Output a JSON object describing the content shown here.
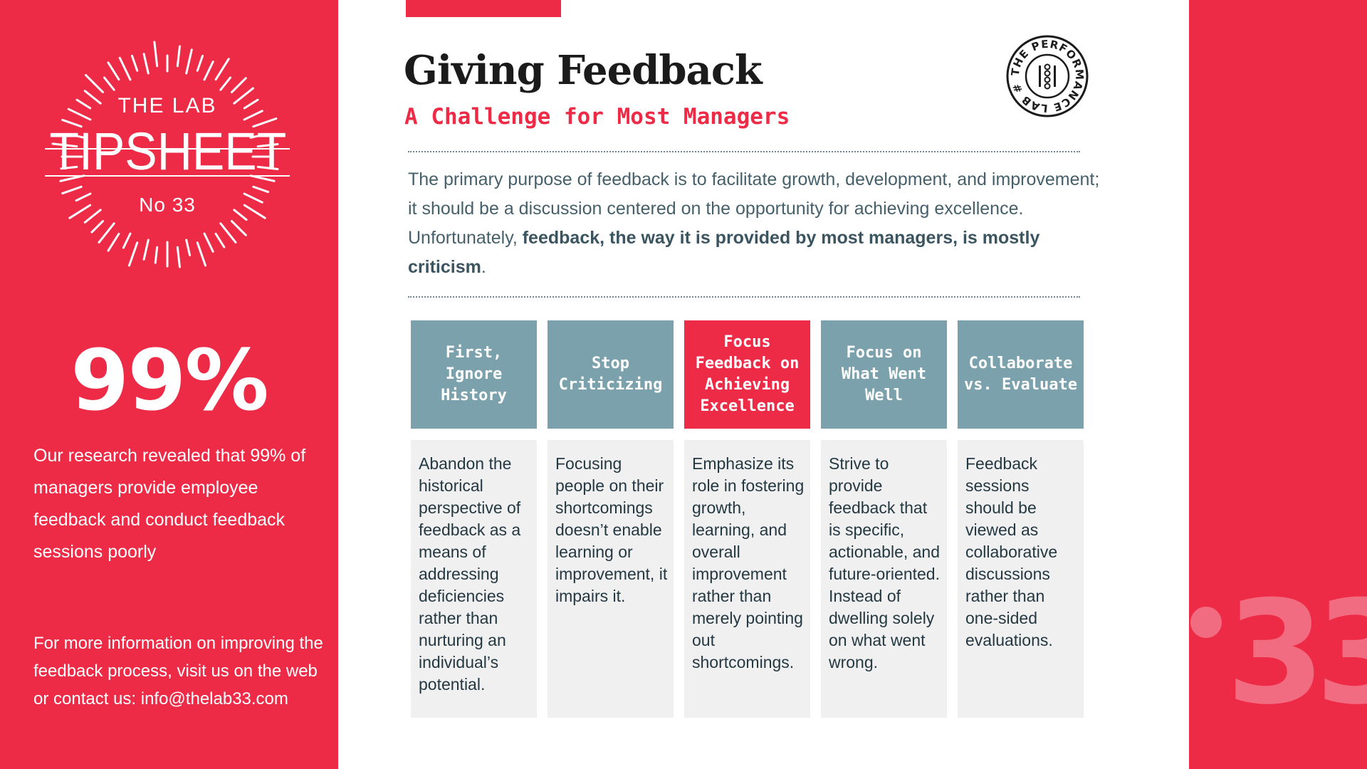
{
  "sidebar": {
    "lab_label": "THE LAB",
    "tipsheet_label": "TIPSHEET",
    "issue_label": "No 33",
    "stat_value": "99%",
    "stat_description": "Our research revealed that 99% of managers provide employee feedback and conduct feedback sessions poorly",
    "contact_text": "For more information on improving the feedback process, visit us on the web or contact us: info@thelab33.com"
  },
  "header": {
    "title": "Giving Feedback",
    "subtitle": "A Challenge for Most Managers",
    "badge_text": "THE PERFORMANCE LAB #"
  },
  "intro": {
    "part1": "The primary purpose of feedback is to facilitate growth, development, and improvement; it should be a discussion centered on the opportunity for achieving excellence. Unfortunately, ",
    "bold": "feedback, the way it is provided by most managers, is mostly criticism",
    "part2": "."
  },
  "columns": [
    {
      "heading": "First, Ignore History",
      "body": "Abandon the historical perspective of feedback as a means of addressing deficiencies rather than nurturing an individual’s potential."
    },
    {
      "heading": "Stop Criticizing",
      "body": "Focusing people on their shortcomings doesn’t enable learning or improvement, it impairs it."
    },
    {
      "heading": "Focus Feedback on Achieving Excellence",
      "body": "Emphasize its role in fostering growth, learning, and overall improvement rather than merely pointing out shortcomings."
    },
    {
      "heading": "Focus on What Went Well",
      "body": "Strive to provide feedback that is specific, actionable, and future-oriented. Instead of dwelling solely on what went wrong."
    },
    {
      "heading": "Collaborate vs. Evaluate",
      "body": "Feedback sessions should be viewed as collaborative discussions rather than one-sided evaluations."
    }
  ],
  "decor": {
    "big_number": "33"
  },
  "colors": {
    "brand_red": "#ee2b47",
    "header_teal": "#7ba2ac",
    "body_gray": "#f0f0f1",
    "text_slate": "#46606b"
  }
}
